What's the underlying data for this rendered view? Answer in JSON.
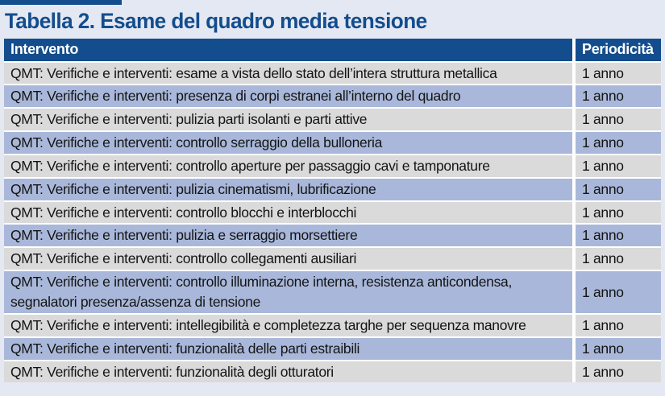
{
  "page": {
    "title": "Tabella 2. Esame del quadro media tensione"
  },
  "colors": {
    "page_background": "#e4e8f2",
    "brand_blue": "#134d8d",
    "row_gray": "#dadada",
    "row_blue": "#a9b8da",
    "header_text": "#ffffff",
    "body_text": "#141414"
  },
  "table": {
    "columns": [
      "Intervento",
      "Periodicità"
    ],
    "rows": [
      {
        "intervento": "QMT: Verifiche e interventi: esame a vista dello stato dell’intera struttura metallica",
        "periodicita": "1 anno"
      },
      {
        "intervento": "QMT: Verifiche e interventi: presenza di corpi estranei all’interno del quadro",
        "periodicita": "1 anno"
      },
      {
        "intervento": "QMT: Verifiche e interventi: pulizia parti isolanti e parti attive",
        "periodicita": "1 anno"
      },
      {
        "intervento": "QMT: Verifiche e interventi: controllo serraggio della bulloneria",
        "periodicita": "1 anno"
      },
      {
        "intervento": "QMT: Verifiche e interventi: controllo aperture per passaggio cavi e tamponature",
        "periodicita": "1 anno"
      },
      {
        "intervento": "QMT: Verifiche e interventi: pulizia cinematismi, lubrificazione",
        "periodicita": "1 anno"
      },
      {
        "intervento": "QMT: Verifiche e interventi: controllo blocchi e interblocchi",
        "periodicita": "1 anno"
      },
      {
        "intervento": "QMT: Verifiche e interventi: pulizia e serraggio morsettiere",
        "periodicita": "1 anno"
      },
      {
        "intervento": "QMT: Verifiche e interventi: controllo collegamenti ausiliari",
        "periodicita": "1 anno"
      },
      {
        "intervento": "QMT: Verifiche e interventi: controllo illuminazione interna, resistenza anticondensa, segnalatori presenza/assenza di tensione",
        "periodicita": "1 anno"
      },
      {
        "intervento": "QMT: Verifiche e interventi: intellegibilità e completezza targhe per sequenza manovre",
        "periodicita": "1 anno"
      },
      {
        "intervento": "QMT: Verifiche e interventi: funzionalità delle parti estraibili",
        "periodicita": "1 anno"
      },
      {
        "intervento": "QMT: Verifiche e interventi: funzionalità degli otturatori",
        "periodicita": "1 anno"
      }
    ]
  }
}
